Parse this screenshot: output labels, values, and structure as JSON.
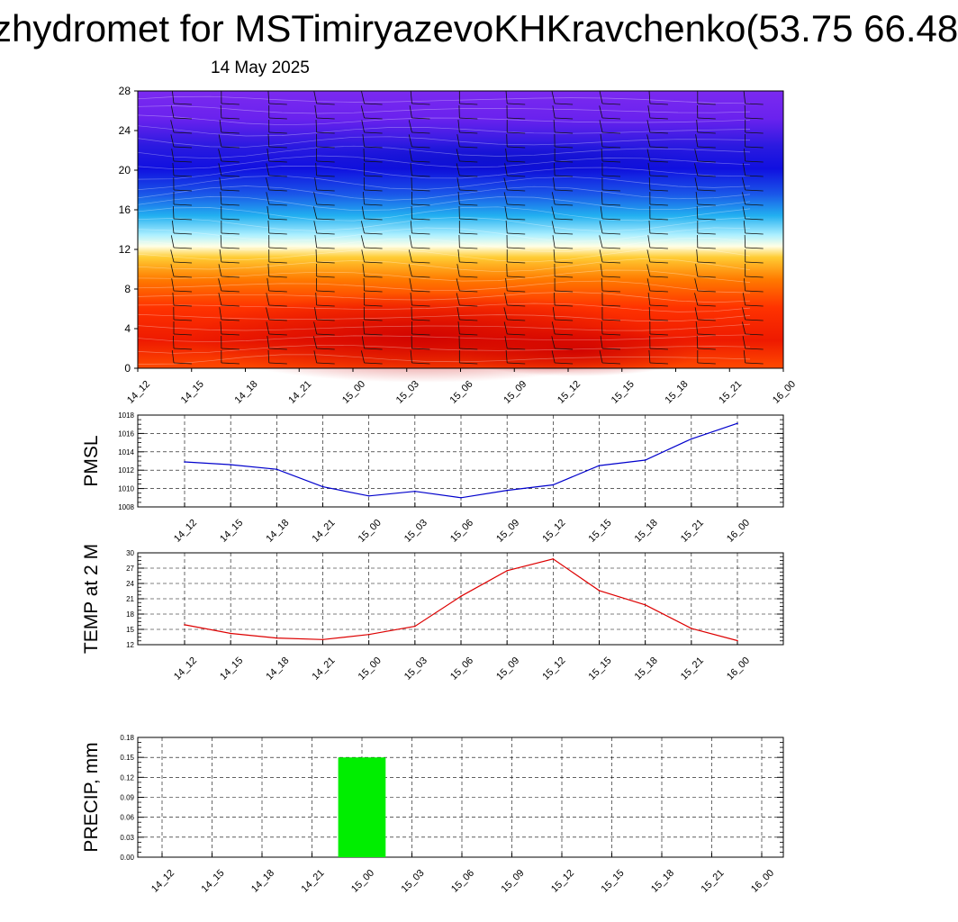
{
  "title": "zhydromet for MSTimiryazevoKHKravchenko(53.75 66.48",
  "subtitle": "14 May 2025",
  "chart_data": [
    {
      "type": "heatmap",
      "description_note": "",
      "x_ticks": [
        "14_12",
        "14_15",
        "14_18",
        "14_21",
        "15_00",
        "15_03",
        "15_06",
        "15_09",
        "15_12",
        "15_15",
        "15_18",
        "15_21",
        "16_00"
      ],
      "y_ticks": [
        "0",
        "4",
        "8",
        "12",
        "16",
        "20",
        "24",
        "28"
      ],
      "ylim": [
        0,
        28
      ],
      "colors": {
        "low": "#ff4400",
        "mid_warm": "#ff9900",
        "neutral": "#ffffe0",
        "mid_cool": "#33bbff",
        "high": "#2222dd",
        "top": "#7722ee"
      }
    },
    {
      "type": "line",
      "ylabel": "PMSL",
      "categories": [
        "14_12",
        "14_15",
        "14_18",
        "14_21",
        "15_00",
        "15_03",
        "15_06",
        "15_09",
        "15_12",
        "15_15",
        "15_18",
        "15_21",
        "16_00"
      ],
      "values": [
        1012.9,
        1012.6,
        1012.1,
        1010.2,
        1009.2,
        1009.7,
        1009.0,
        1009.8,
        1010.4,
        1012.5,
        1013.1,
        1015.4,
        1017.1
      ],
      "ylim": [
        1008,
        1018
      ],
      "y_ticks": [
        "1008",
        "1010",
        "1012",
        "1014",
        "1016",
        "1018"
      ],
      "color": "#0000cc",
      "grid": true
    },
    {
      "type": "line",
      "ylabel": "TEMP at 2 M",
      "categories": [
        "14_12",
        "14_15",
        "14_18",
        "14_21",
        "15_00",
        "15_03",
        "15_06",
        "15_09",
        "15_12",
        "15_15",
        "15_18",
        "15_21",
        "16_00"
      ],
      "values": [
        15.9,
        14.2,
        13.3,
        13.0,
        14.0,
        15.6,
        21.5,
        26.5,
        28.8,
        22.6,
        19.8,
        15.2,
        12.8
      ],
      "ylim": [
        12,
        30
      ],
      "y_ticks": [
        "12",
        "15",
        "18",
        "21",
        "24",
        "27",
        "30"
      ],
      "color": "#dd0000",
      "grid": true
    },
    {
      "type": "bar",
      "ylabel": "PRECIP, mm",
      "categories": [
        "14_12",
        "14_15",
        "14_18",
        "14_21",
        "15_00",
        "15_03",
        "15_06",
        "15_09",
        "15_12",
        "15_15",
        "15_18",
        "15_21",
        "16_00"
      ],
      "values": [
        0,
        0,
        0,
        0,
        0.15,
        0,
        0,
        0,
        0,
        0,
        0,
        0,
        0
      ],
      "ylim": [
        0,
        0.18
      ],
      "y_ticks": [
        "0.00",
        "0.03",
        "0.06",
        "0.09",
        "0.12",
        "0.15",
        "0.18"
      ],
      "color": "#00ee00",
      "grid": true
    }
  ]
}
